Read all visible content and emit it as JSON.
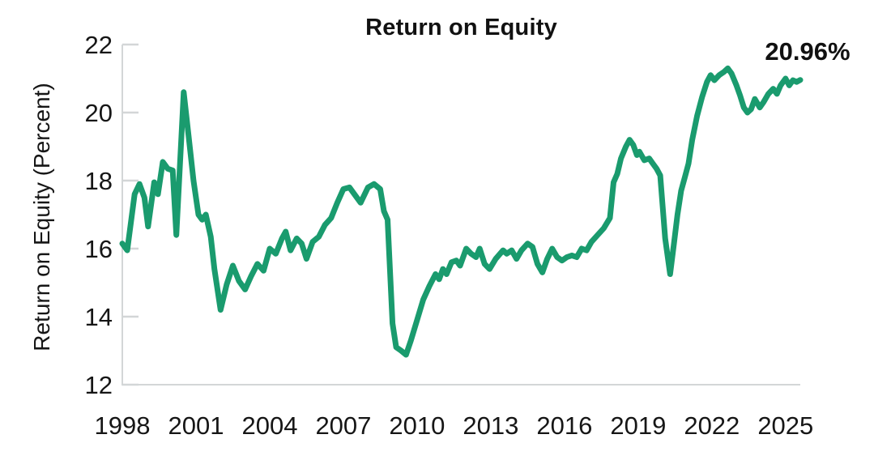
{
  "chart_data": {
    "type": "line",
    "title": "Return on Equity",
    "ylabel": "Return on Equity (Percent)",
    "xlabel": "",
    "annotation_latest_value": "20.96%",
    "grid": false,
    "legend": "none",
    "xlim": [
      1998,
      2025.6
    ],
    "ylim": [
      12,
      22
    ],
    "x_ticks": [
      1998,
      2001,
      2004,
      2007,
      2010,
      2013,
      2016,
      2019,
      2022,
      2025
    ],
    "y_ticks": [
      12,
      14,
      16,
      18,
      20,
      22
    ],
    "series": [
      {
        "name": "Return on Equity (Percent)",
        "color": "#1a9b6e",
        "points": [
          [
            1998.0,
            16.15
          ],
          [
            1998.2,
            15.95
          ],
          [
            1998.5,
            17.6
          ],
          [
            1998.7,
            17.9
          ],
          [
            1998.9,
            17.5
          ],
          [
            1999.05,
            16.65
          ],
          [
            1999.3,
            17.95
          ],
          [
            1999.45,
            17.6
          ],
          [
            1999.65,
            18.55
          ],
          [
            1999.85,
            18.35
          ],
          [
            2000.05,
            18.3
          ],
          [
            2000.2,
            16.4
          ],
          [
            2000.5,
            20.6
          ],
          [
            2000.7,
            19.3
          ],
          [
            2000.9,
            18.0
          ],
          [
            2001.1,
            17.0
          ],
          [
            2001.25,
            16.85
          ],
          [
            2001.4,
            17.0
          ],
          [
            2001.6,
            16.35
          ],
          [
            2001.75,
            15.4
          ],
          [
            2002.0,
            14.2
          ],
          [
            2002.25,
            14.95
          ],
          [
            2002.5,
            15.5
          ],
          [
            2002.75,
            15.05
          ],
          [
            2003.0,
            14.8
          ],
          [
            2003.25,
            15.2
          ],
          [
            2003.5,
            15.55
          ],
          [
            2003.75,
            15.35
          ],
          [
            2004.0,
            16.0
          ],
          [
            2004.25,
            15.85
          ],
          [
            2004.5,
            16.3
          ],
          [
            2004.65,
            16.5
          ],
          [
            2004.85,
            15.95
          ],
          [
            2005.1,
            16.3
          ],
          [
            2005.3,
            16.15
          ],
          [
            2005.5,
            15.7
          ],
          [
            2005.75,
            16.2
          ],
          [
            2006.0,
            16.35
          ],
          [
            2006.25,
            16.7
          ],
          [
            2006.5,
            16.9
          ],
          [
            2006.75,
            17.35
          ],
          [
            2007.0,
            17.75
          ],
          [
            2007.25,
            17.8
          ],
          [
            2007.5,
            17.55
          ],
          [
            2007.7,
            17.35
          ],
          [
            2008.0,
            17.8
          ],
          [
            2008.25,
            17.9
          ],
          [
            2008.5,
            17.75
          ],
          [
            2008.65,
            17.1
          ],
          [
            2008.8,
            16.85
          ],
          [
            2009.0,
            13.8
          ],
          [
            2009.15,
            13.1
          ],
          [
            2009.35,
            13.0
          ],
          [
            2009.55,
            12.88
          ],
          [
            2009.75,
            13.3
          ],
          [
            2010.0,
            13.9
          ],
          [
            2010.25,
            14.5
          ],
          [
            2010.5,
            14.9
          ],
          [
            2010.75,
            15.25
          ],
          [
            2010.9,
            15.1
          ],
          [
            2011.05,
            15.4
          ],
          [
            2011.2,
            15.25
          ],
          [
            2011.4,
            15.6
          ],
          [
            2011.6,
            15.65
          ],
          [
            2011.75,
            15.5
          ],
          [
            2012.0,
            16.0
          ],
          [
            2012.2,
            15.85
          ],
          [
            2012.4,
            15.75
          ],
          [
            2012.55,
            16.0
          ],
          [
            2012.75,
            15.55
          ],
          [
            2012.95,
            15.4
          ],
          [
            2013.2,
            15.7
          ],
          [
            2013.5,
            15.95
          ],
          [
            2013.65,
            15.85
          ],
          [
            2013.85,
            15.95
          ],
          [
            2014.05,
            15.7
          ],
          [
            2014.25,
            15.95
          ],
          [
            2014.5,
            16.15
          ],
          [
            2014.7,
            16.05
          ],
          [
            2014.9,
            15.55
          ],
          [
            2015.1,
            15.3
          ],
          [
            2015.3,
            15.7
          ],
          [
            2015.5,
            16.0
          ],
          [
            2015.7,
            15.75
          ],
          [
            2015.9,
            15.65
          ],
          [
            2016.1,
            15.75
          ],
          [
            2016.3,
            15.8
          ],
          [
            2016.5,
            15.75
          ],
          [
            2016.7,
            16.0
          ],
          [
            2016.9,
            15.95
          ],
          [
            2017.1,
            16.2
          ],
          [
            2017.35,
            16.4
          ],
          [
            2017.6,
            16.6
          ],
          [
            2017.85,
            16.9
          ],
          [
            2018.0,
            17.95
          ],
          [
            2018.15,
            18.2
          ],
          [
            2018.3,
            18.65
          ],
          [
            2018.5,
            19.0
          ],
          [
            2018.65,
            19.2
          ],
          [
            2018.8,
            19.05
          ],
          [
            2018.95,
            18.75
          ],
          [
            2019.05,
            18.85
          ],
          [
            2019.25,
            18.6
          ],
          [
            2019.45,
            18.65
          ],
          [
            2019.6,
            18.5
          ],
          [
            2019.75,
            18.35
          ],
          [
            2019.9,
            18.15
          ],
          [
            2020.1,
            16.3
          ],
          [
            2020.3,
            15.25
          ],
          [
            2020.45,
            16.1
          ],
          [
            2020.6,
            17.0
          ],
          [
            2020.75,
            17.7
          ],
          [
            2020.9,
            18.1
          ],
          [
            2021.05,
            18.5
          ],
          [
            2021.2,
            19.2
          ],
          [
            2021.4,
            19.9
          ],
          [
            2021.6,
            20.45
          ],
          [
            2021.8,
            20.9
          ],
          [
            2021.95,
            21.1
          ],
          [
            2022.1,
            20.95
          ],
          [
            2022.3,
            21.1
          ],
          [
            2022.5,
            21.2
          ],
          [
            2022.65,
            21.3
          ],
          [
            2022.8,
            21.15
          ],
          [
            2023.0,
            20.8
          ],
          [
            2023.15,
            20.5
          ],
          [
            2023.3,
            20.15
          ],
          [
            2023.45,
            20.0
          ],
          [
            2023.6,
            20.1
          ],
          [
            2023.75,
            20.4
          ],
          [
            2023.95,
            20.15
          ],
          [
            2024.1,
            20.3
          ],
          [
            2024.3,
            20.55
          ],
          [
            2024.5,
            20.7
          ],
          [
            2024.65,
            20.55
          ],
          [
            2024.8,
            20.8
          ],
          [
            2025.0,
            21.0
          ],
          [
            2025.15,
            20.8
          ],
          [
            2025.3,
            20.95
          ],
          [
            2025.45,
            20.9
          ],
          [
            2025.6,
            20.96
          ]
        ]
      }
    ]
  },
  "style": {
    "line_color": "#1a9b6e",
    "axis_color": "#d3d6d7",
    "tick_text_color": "#161616",
    "title_color": "#111111",
    "background": "#ffffff"
  }
}
